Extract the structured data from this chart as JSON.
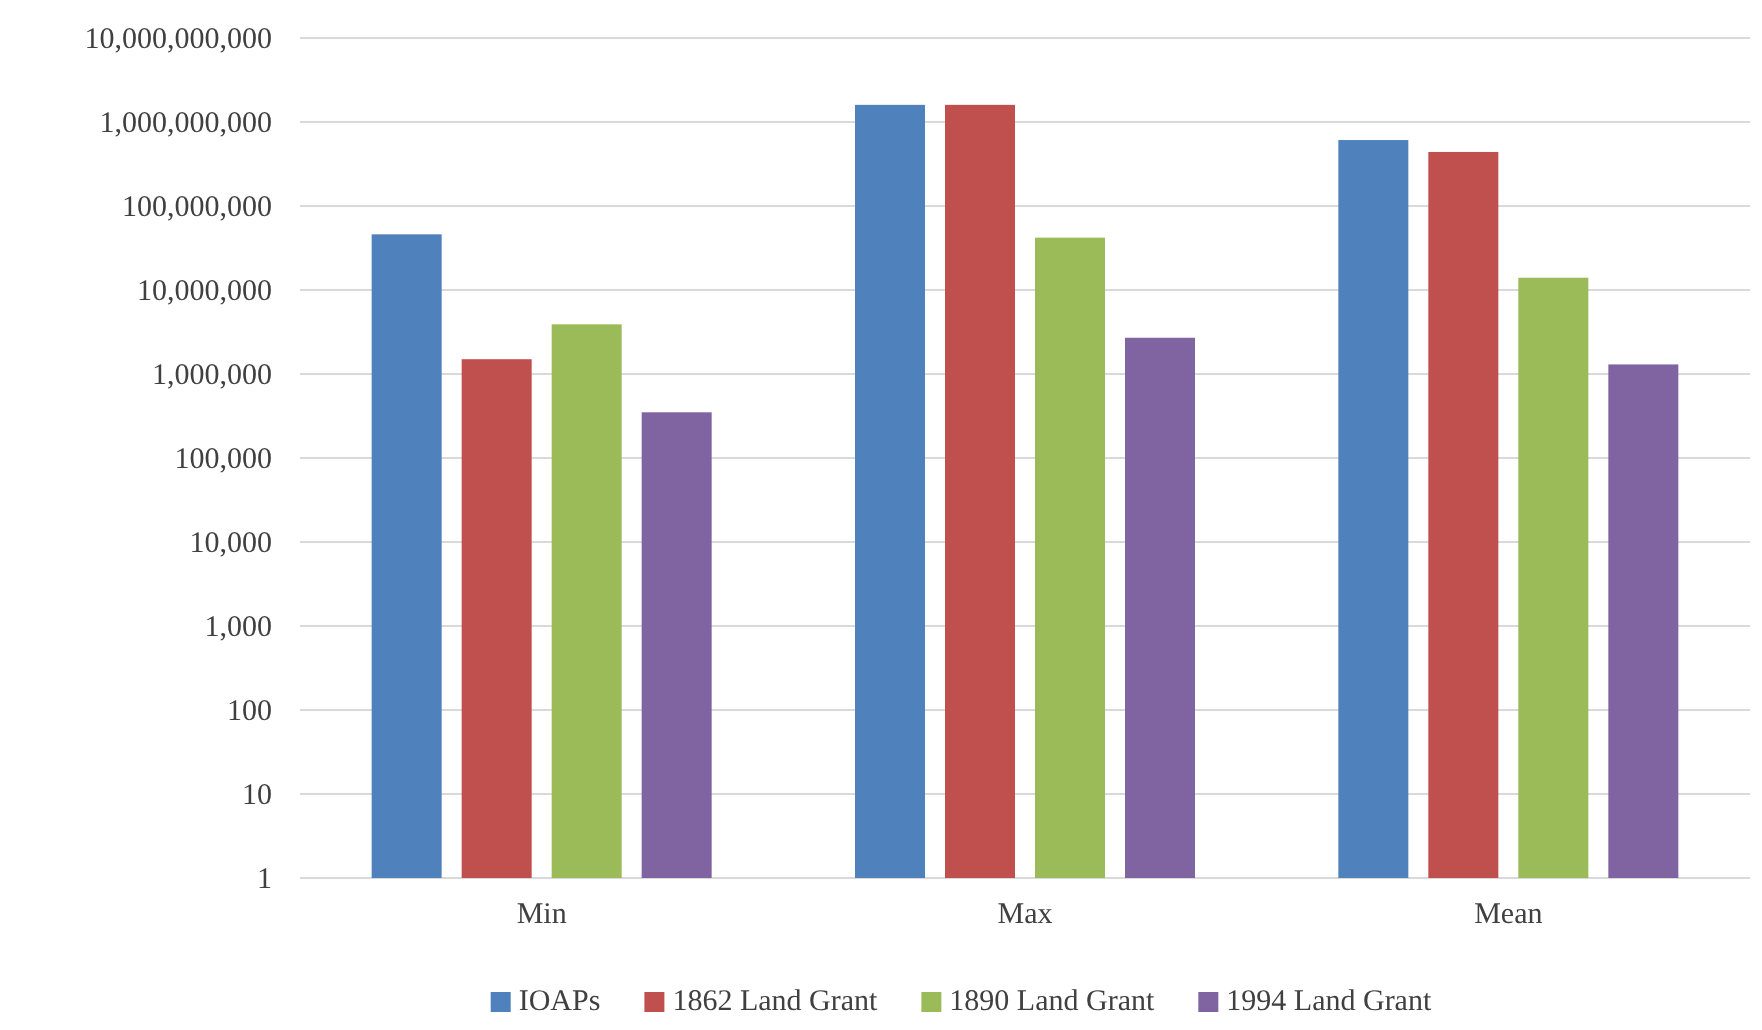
{
  "chart_data": {
    "type": "bar",
    "categories": [
      "Min",
      "Max",
      "Mean"
    ],
    "series": [
      {
        "name": "IOAPs",
        "color": "#4f81bd",
        "values": [
          46000000,
          1600000000,
          610000000
        ]
      },
      {
        "name": "1862 Land Grant",
        "color": "#c0504d",
        "values": [
          1500000,
          1600000000,
          440000000
        ]
      },
      {
        "name": "1890 Land Grant",
        "color": "#9bbb59",
        "values": [
          3900000,
          42000000,
          14000000
        ]
      },
      {
        "name": "1994 Land Grant",
        "color": "#8064a2",
        "values": [
          350000,
          2700000,
          1300000
        ]
      }
    ],
    "log": true,
    "ylim": [
      1,
      10000000000
    ],
    "yticks": [
      {
        "value": 1,
        "label": "1"
      },
      {
        "value": 10,
        "label": "10"
      },
      {
        "value": 100,
        "label": "100"
      },
      {
        "value": 1000,
        "label": "1,000"
      },
      {
        "value": 10000,
        "label": "10,000"
      },
      {
        "value": 100000,
        "label": "100,000"
      },
      {
        "value": 1000000,
        "label": "1,000,000"
      },
      {
        "value": 10000000,
        "label": "10,000,000"
      },
      {
        "value": 100000000,
        "label": "100,000,000"
      },
      {
        "value": 1000000000,
        "label": "1,000,000,000"
      },
      {
        "value": 10000000000,
        "label": "10,000,000,000"
      }
    ],
    "grid": "y",
    "legend": "bottom"
  }
}
